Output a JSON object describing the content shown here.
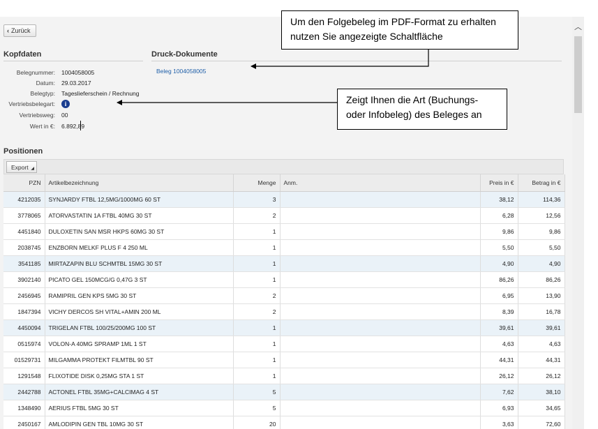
{
  "back_label": "Zurück",
  "kopfdaten": {
    "title": "Kopfdaten",
    "fields": [
      {
        "label": "Belegnummer:",
        "value": "1004058005"
      },
      {
        "label": "Datum:",
        "value": "29.03.2017"
      },
      {
        "label": "Belegtyp:",
        "value": "Tageslieferschein / Rechnung"
      },
      {
        "label": "Vertriebsbelegart:",
        "value": ""
      },
      {
        "label": "Vertriebsweg:",
        "value": "00"
      },
      {
        "label": "Wert in €:",
        "value": "6.892,89"
      }
    ],
    "info_icon_glyph": "i"
  },
  "druck": {
    "title": "Druck-Dokumente",
    "link": "Beleg 1004058005"
  },
  "positionen": {
    "title": "Positionen",
    "export_label": "Export",
    "columns": {
      "pzn": "PZN",
      "artikel": "Artikelbezeichnung",
      "menge": "Menge",
      "anm": "Anm.",
      "preis": "Preis in €",
      "betrag": "Betrag in €"
    },
    "rows": [
      {
        "pzn": "4212035",
        "artikel": "SYNJARDY FTBL 12,5MG/1000MG 60 ST",
        "menge": "3",
        "anm": "",
        "preis": "38,12",
        "betrag": "114,36"
      },
      {
        "pzn": "3778065",
        "artikel": "ATORVASTATIN 1A FTBL 40MG 30 ST",
        "menge": "2",
        "anm": "",
        "preis": "6,28",
        "betrag": "12,56"
      },
      {
        "pzn": "4451840",
        "artikel": "DULOXETIN SAN MSR HKPS 60MG 30 ST",
        "menge": "1",
        "anm": "",
        "preis": "9,86",
        "betrag": "9,86"
      },
      {
        "pzn": "2038745",
        "artikel": "ENZBORN MELKF PLUS F 4 250 ML",
        "menge": "1",
        "anm": "",
        "preis": "5,50",
        "betrag": "5,50"
      },
      {
        "pzn": "3541185",
        "artikel": "MIRTAZAPIN BLU SCHMTBL 15MG 30 ST",
        "menge": "1",
        "anm": "",
        "preis": "4,90",
        "betrag": "4,90"
      },
      {
        "pzn": "3902140",
        "artikel": "PICATO GEL 150MCG/G 0,47G 3 ST",
        "menge": "1",
        "anm": "",
        "preis": "86,26",
        "betrag": "86,26"
      },
      {
        "pzn": "2456945",
        "artikel": "RAMIPRIL GEN KPS 5MG 30 ST",
        "menge": "2",
        "anm": "",
        "preis": "6,95",
        "betrag": "13,90"
      },
      {
        "pzn": "1847394",
        "artikel": "VICHY DERCOS SH VITAL+AMIN 200 ML",
        "menge": "2",
        "anm": "",
        "preis": "8,39",
        "betrag": "16,78"
      },
      {
        "pzn": "4450094",
        "artikel": "TRIGELAN FTBL 100/25/200MG 100 ST",
        "menge": "1",
        "anm": "",
        "preis": "39,61",
        "betrag": "39,61"
      },
      {
        "pzn": "0515974",
        "artikel": "VOLON-A 40MG SPRAMP 1ML 1 ST",
        "menge": "1",
        "anm": "",
        "preis": "4,63",
        "betrag": "4,63"
      },
      {
        "pzn": "01529731",
        "artikel": "MILGAMMA PROTEKT FILMTBL 90 ST",
        "menge": "1",
        "anm": "",
        "preis": "44,31",
        "betrag": "44,31"
      },
      {
        "pzn": "1291548",
        "artikel": "FLIXOTIDE DISK 0,25MG STA 1 ST",
        "menge": "1",
        "anm": "",
        "preis": "26,12",
        "betrag": "26,12"
      },
      {
        "pzn": "2442788",
        "artikel": "ACTONEL FTBL 35MG+CALCIMAG 4 ST",
        "menge": "5",
        "anm": "",
        "preis": "7,62",
        "betrag": "38,10"
      },
      {
        "pzn": "1348490",
        "artikel": "AERIUS FTBL 5MG 30 ST",
        "menge": "5",
        "anm": "",
        "preis": "6,93",
        "betrag": "34,65"
      },
      {
        "pzn": "2450167",
        "artikel": "AMLODIPIN GEN TBL 10MG 30 ST",
        "menge": "20",
        "anm": "",
        "preis": "3,63",
        "betrag": "72,60"
      }
    ]
  },
  "callouts": {
    "pdf": "Um den Folgebeleg im PDF-Format zu erhalten nutzen Sie angezeigte Schaltfläche",
    "art": "Zeigt Ihnen die Art (Buchungs- oder Infobeleg) des Beleges an"
  }
}
